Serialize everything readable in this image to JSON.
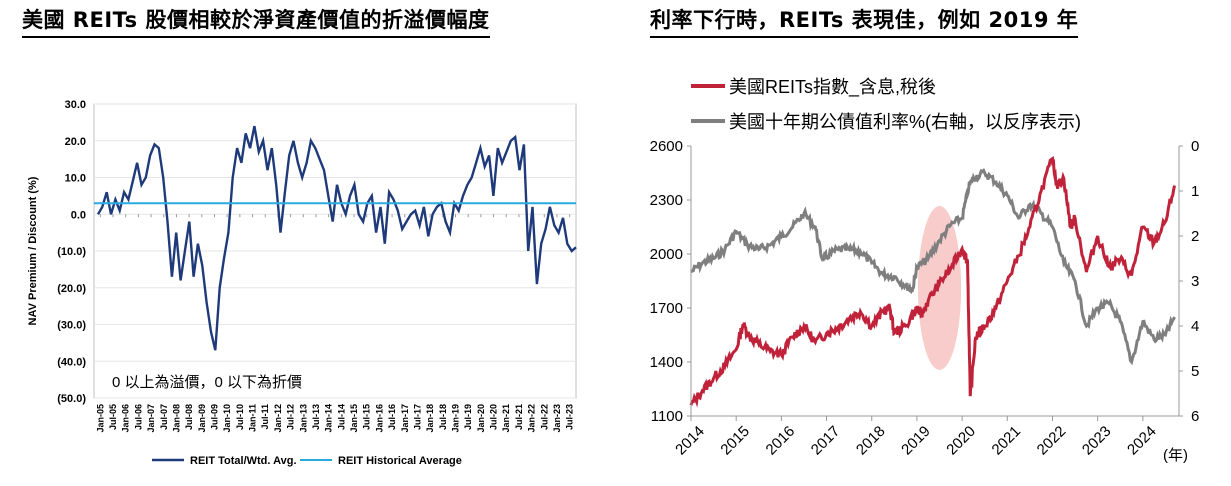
{
  "left_title": "美國 REITs 股價相較於淨資產價值的折溢價幅度",
  "right_title": "利率下行時，REITs 表現佳，例如 2019 年",
  "chart_data": [
    {
      "type": "line",
      "ylabel": "NAV Premium / Discount (%)",
      "ylim": [
        -50,
        30
      ],
      "y_ticks": [
        {
          "v": 30,
          "label": "30.0"
        },
        {
          "v": 20,
          "label": "20.0"
        },
        {
          "v": 10,
          "label": "10.0"
        },
        {
          "v": 0,
          "label": "0.0"
        },
        {
          "v": -10,
          "label": "(10.0)"
        },
        {
          "v": -20,
          "label": "(20.0)"
        },
        {
          "v": -30,
          "label": "(30.0)"
        },
        {
          "v": -40,
          "label": "(40.0)"
        },
        {
          "v": -50,
          "label": "(50.0)"
        }
      ],
      "x_labels": [
        "Jan-05",
        "Jul-05",
        "Jan-06",
        "Jul-06",
        "Jan-07",
        "Jul-07",
        "Jan-08",
        "Jul-08",
        "Jan-09",
        "Jul-09",
        "Jan-10",
        "Jul-10",
        "Jan-11",
        "Jul-11",
        "Jan-12",
        "Jul-12",
        "Jan-13",
        "Jul-13",
        "Jan-14",
        "Jul-14",
        "Jan-15",
        "Jul-15",
        "Jan-16",
        "Jul-16",
        "Jan-17",
        "Jul-17",
        "Jan-18",
        "Jul-18",
        "Jan-19",
        "Jul-19",
        "Jan-20",
        "Jul-20",
        "Jan-21",
        "Jul-21",
        "Jan-22",
        "Jul-22",
        "Jan-23",
        "Jul-23"
      ],
      "annotation": "0 以上為溢價，0 以下為折價",
      "series": [
        {
          "name": "REIT Total/Wtd. Avg.",
          "color": "#1F3A7A",
          "values": [
            0,
            2,
            6,
            0,
            4,
            1,
            6,
            4,
            9,
            14,
            8,
            10,
            16,
            19,
            18,
            10,
            -2,
            -17,
            -5,
            -18,
            -10,
            -2,
            -17,
            -8,
            -14,
            -24,
            -32,
            -37,
            -20,
            -12,
            -5,
            10,
            18,
            14,
            22,
            18,
            24,
            17,
            20,
            12,
            18,
            8,
            -5,
            6,
            16,
            20,
            14,
            10,
            14,
            20,
            18,
            15,
            12,
            5,
            -2,
            8,
            3,
            0,
            5,
            8,
            0,
            -2,
            3,
            5,
            -5,
            2,
            -8,
            6,
            4,
            1,
            -4,
            -2,
            0,
            1,
            -3,
            2,
            -6,
            0,
            2,
            3,
            -2,
            -5,
            3,
            1,
            5,
            8,
            10,
            14,
            18,
            13,
            16,
            5,
            18,
            14,
            17,
            20,
            21,
            12,
            19,
            -10,
            2,
            -19,
            -8,
            -4,
            2,
            -3,
            -5,
            -1,
            -8,
            -10,
            -9
          ],
          "grid_note": "approx. quarterly samples, Jan-05 to Sep-23"
        },
        {
          "name": "REIT Historical Average",
          "color": "#29ABE2",
          "constant": 3
        }
      ]
    },
    {
      "type": "line",
      "x_labels": [
        "2014",
        "2015",
        "2016",
        "2017",
        "2018",
        "2019",
        "2020",
        "2021",
        "2022",
        "2023",
        "2024"
      ],
      "x_unit": "(年)",
      "xlim": [
        2014,
        2024.8
      ],
      "y_left": {
        "ylim": [
          1100,
          2600
        ],
        "ticks": [
          "1100",
          "1400",
          "1700",
          "2000",
          "2300",
          "2600"
        ]
      },
      "y_right": {
        "ylim": [
          6,
          0
        ],
        "reversed": true,
        "ticks": [
          "0",
          "1",
          "2",
          "3",
          "4",
          "5",
          "6"
        ]
      },
      "highlight": {
        "x_from": 2019.0,
        "x_to": 2020.0,
        "color": "#F4B6B3"
      },
      "series": [
        {
          "name": "美國REITs指數_含息,稅後",
          "color": "#C0223A",
          "axis": "left",
          "points": [
            [
              2014,
              1160
            ],
            [
              2014.25,
              1240
            ],
            [
              2014.5,
              1310
            ],
            [
              2014.75,
              1380
            ],
            [
              2015,
              1470
            ],
            [
              2015.15,
              1610
            ],
            [
              2015.3,
              1540
            ],
            [
              2015.5,
              1500
            ],
            [
              2015.75,
              1460
            ],
            [
              2016,
              1440
            ],
            [
              2016.25,
              1540
            ],
            [
              2016.5,
              1600
            ],
            [
              2016.75,
              1510
            ],
            [
              2017,
              1560
            ],
            [
              2017.25,
              1590
            ],
            [
              2017.5,
              1640
            ],
            [
              2017.75,
              1680
            ],
            [
              2018,
              1600
            ],
            [
              2018.25,
              1680
            ],
            [
              2018.4,
              1700
            ],
            [
              2018.5,
              1560
            ],
            [
              2018.75,
              1600
            ],
            [
              2019,
              1700
            ],
            [
              2019.1,
              1660
            ],
            [
              2019.25,
              1740
            ],
            [
              2019.5,
              1840
            ],
            [
              2019.75,
              1920
            ],
            [
              2020,
              2030
            ],
            [
              2020.12,
              1960
            ],
            [
              2020.18,
              1210
            ],
            [
              2020.3,
              1540
            ],
            [
              2020.5,
              1600
            ],
            [
              2020.75,
              1700
            ],
            [
              2021,
              1850
            ],
            [
              2021.25,
              1990
            ],
            [
              2021.5,
              2150
            ],
            [
              2021.75,
              2350
            ],
            [
              2022,
              2530
            ],
            [
              2022.1,
              2380
            ],
            [
              2022.25,
              2420
            ],
            [
              2022.4,
              2150
            ],
            [
              2022.5,
              2200
            ],
            [
              2022.75,
              1900
            ],
            [
              2023,
              2100
            ],
            [
              2023.25,
              1930
            ],
            [
              2023.5,
              1970
            ],
            [
              2023.75,
              1880
            ],
            [
              2024,
              2150
            ],
            [
              2024.25,
              2060
            ],
            [
              2024.5,
              2180
            ],
            [
              2024.7,
              2380
            ]
          ]
        },
        {
          "name": "美國十年期公債值利率%(右軸，以反序表示)",
          "color": "#7F7F7F",
          "axis": "right",
          "points": [
            [
              2014,
              2.8
            ],
            [
              2014.25,
              2.6
            ],
            [
              2014.5,
              2.5
            ],
            [
              2014.75,
              2.3
            ],
            [
              2015,
              1.9
            ],
            [
              2015.25,
              2.2
            ],
            [
              2015.5,
              2.3
            ],
            [
              2015.75,
              2.2
            ],
            [
              2016,
              2.0
            ],
            [
              2016.25,
              1.8
            ],
            [
              2016.5,
              1.5
            ],
            [
              2016.75,
              1.8
            ],
            [
              2016.9,
              2.5
            ],
            [
              2017,
              2.45
            ],
            [
              2017.25,
              2.3
            ],
            [
              2017.5,
              2.3
            ],
            [
              2017.75,
              2.35
            ],
            [
              2018,
              2.6
            ],
            [
              2018.25,
              2.85
            ],
            [
              2018.5,
              2.9
            ],
            [
              2018.75,
              3.1
            ],
            [
              2018.9,
              3.2
            ],
            [
              2019,
              2.7
            ],
            [
              2019.25,
              2.5
            ],
            [
              2019.5,
              2.1
            ],
            [
              2019.75,
              1.75
            ],
            [
              2020,
              1.6
            ],
            [
              2020.15,
              0.9
            ],
            [
              2020.25,
              0.7
            ],
            [
              2020.5,
              0.6
            ],
            [
              2020.75,
              0.8
            ],
            [
              2021,
              1.1
            ],
            [
              2021.25,
              1.6
            ],
            [
              2021.5,
              1.3
            ],
            [
              2021.75,
              1.5
            ],
            [
              2022,
              1.8
            ],
            [
              2022.25,
              2.6
            ],
            [
              2022.5,
              3.0
            ],
            [
              2022.75,
              4.0
            ],
            [
              2023,
              3.6
            ],
            [
              2023.25,
              3.5
            ],
            [
              2023.5,
              3.9
            ],
            [
              2023.75,
              4.8
            ],
            [
              2024,
              3.9
            ],
            [
              2024.25,
              4.3
            ],
            [
              2024.5,
              4.2
            ],
            [
              2024.7,
              3.8
            ]
          ]
        }
      ]
    }
  ]
}
